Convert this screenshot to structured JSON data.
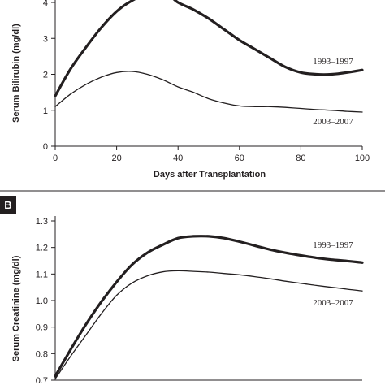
{
  "chart_data": [
    {
      "type": "line",
      "panel": "",
      "xlabel": "Days after Transplantation",
      "ylabel": "Serum Bilirubin (mg/dl)",
      "xlim": [
        0,
        100
      ],
      "ylim": [
        0,
        4
      ],
      "x_ticks": [
        "0",
        "20",
        "40",
        "60",
        "80",
        "100"
      ],
      "y_ticks": [
        "0",
        "1",
        "2",
        "3",
        "4"
      ],
      "series": [
        {
          "name": "1993–1997",
          "emphasis": "bold",
          "x": [
            0,
            5,
            10,
            15,
            20,
            24,
            30,
            36,
            40,
            45,
            50,
            55,
            60,
            65,
            70,
            75,
            80,
            85,
            90,
            95,
            100
          ],
          "y": [
            1.4,
            2.15,
            2.75,
            3.3,
            3.75,
            4.0,
            4.25,
            4.25,
            4.0,
            3.8,
            3.55,
            3.25,
            2.95,
            2.7,
            2.45,
            2.2,
            2.05,
            2.0,
            2.0,
            2.05,
            2.12
          ]
        },
        {
          "name": "2003–2007",
          "emphasis": "thin",
          "x": [
            0,
            5,
            10,
            15,
            20,
            25,
            30,
            35,
            40,
            45,
            50,
            55,
            60,
            65,
            70,
            75,
            80,
            85,
            90,
            95,
            100
          ],
          "y": [
            1.1,
            1.45,
            1.72,
            1.92,
            2.05,
            2.08,
            2.0,
            1.85,
            1.65,
            1.5,
            1.32,
            1.2,
            1.12,
            1.1,
            1.1,
            1.08,
            1.05,
            1.02,
            1.0,
            0.97,
            0.95
          ]
        }
      ]
    },
    {
      "type": "line",
      "panel": "B",
      "xlabel": "",
      "ylabel": "Serum Creatinine (mg/dl)",
      "ylim": [
        0.7,
        1.3
      ],
      "y_ticks": [
        "0.7",
        "0.8",
        "0.9",
        "1.0",
        "1.1",
        "1.2",
        "1.3"
      ],
      "xlim": [
        0,
        100
      ],
      "series": [
        {
          "name": "1993–1997",
          "emphasis": "bold",
          "x": [
            0,
            5,
            10,
            15,
            20,
            25,
            30,
            35,
            40,
            45,
            50,
            55,
            60,
            65,
            70,
            75,
            80,
            85,
            90,
            95,
            100
          ],
          "y": [
            0.715,
            0.815,
            0.91,
            0.995,
            1.07,
            1.135,
            1.18,
            1.21,
            1.235,
            1.242,
            1.242,
            1.235,
            1.222,
            1.207,
            1.192,
            1.18,
            1.17,
            1.161,
            1.154,
            1.149,
            1.143
          ]
        },
        {
          "name": "2003–2007",
          "emphasis": "thin",
          "x": [
            0,
            5,
            10,
            15,
            20,
            25,
            30,
            35,
            40,
            45,
            50,
            55,
            60,
            65,
            70,
            75,
            80,
            85,
            90,
            95,
            100
          ],
          "y": [
            0.705,
            0.79,
            0.87,
            0.95,
            1.02,
            1.066,
            1.093,
            1.108,
            1.112,
            1.11,
            1.107,
            1.102,
            1.097,
            1.09,
            1.082,
            1.073,
            1.065,
            1.057,
            1.05,
            1.043,
            1.036
          ]
        }
      ]
    }
  ]
}
